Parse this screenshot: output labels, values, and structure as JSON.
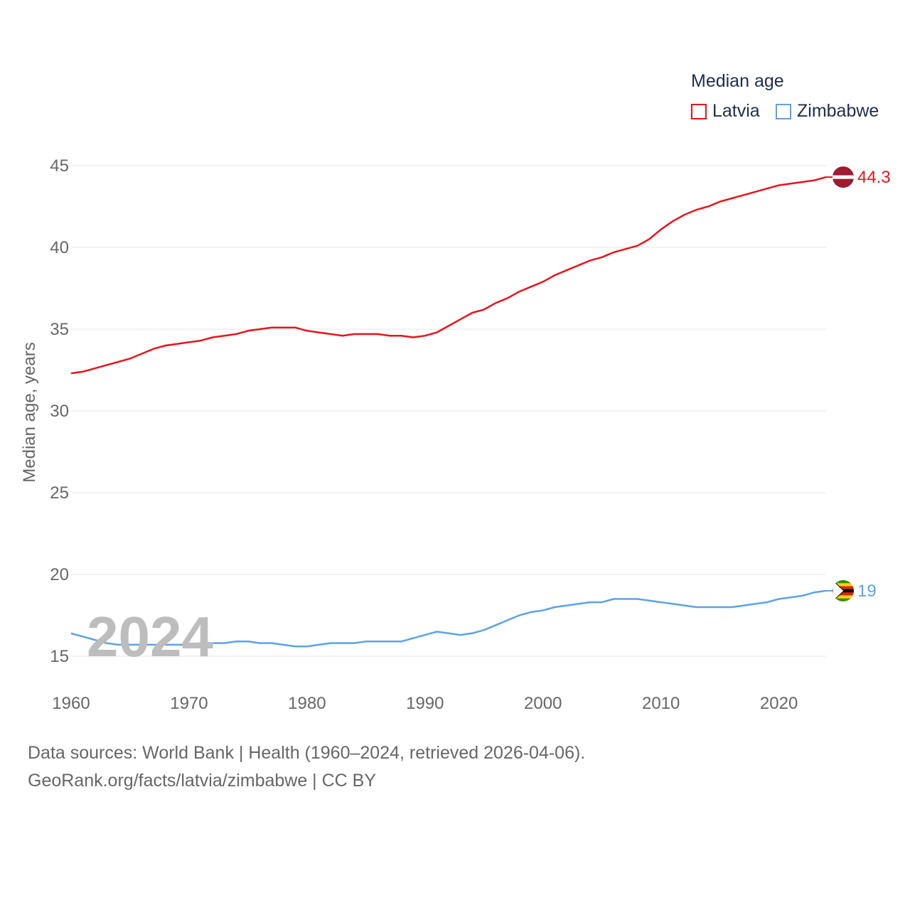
{
  "legend": {
    "title": "Median age",
    "items": [
      {
        "label": "Latvia",
        "color": "#e8141b"
      },
      {
        "label": "Zimbabwe",
        "color": "#5ba3e6"
      }
    ]
  },
  "watermark_year": "2024",
  "footer": {
    "line1": "Data sources: World Bank | Health (1960–2024, retrieved 2026-04-06).",
    "line2": "GeoRank.org/facts/latvia/zimbabwe | CC BY"
  },
  "chart_data": {
    "type": "line",
    "title": "Median age",
    "xlabel": "",
    "ylabel": "Median age, years",
    "xlim": [
      1960,
      2024
    ],
    "ylim": [
      13,
      47
    ],
    "x_ticks": [
      1960,
      1970,
      1980,
      1990,
      2000,
      2010,
      2020
    ],
    "y_ticks": [
      15,
      20,
      25,
      30,
      35,
      40,
      45
    ],
    "grid": true,
    "x": [
      1960,
      1961,
      1962,
      1963,
      1964,
      1965,
      1966,
      1967,
      1968,
      1969,
      1970,
      1971,
      1972,
      1973,
      1974,
      1975,
      1976,
      1977,
      1978,
      1979,
      1980,
      1981,
      1982,
      1983,
      1984,
      1985,
      1986,
      1987,
      1988,
      1989,
      1990,
      1991,
      1992,
      1993,
      1994,
      1995,
      1996,
      1997,
      1998,
      1999,
      2000,
      2001,
      2002,
      2003,
      2004,
      2005,
      2006,
      2007,
      2008,
      2009,
      2010,
      2011,
      2012,
      2013,
      2014,
      2015,
      2016,
      2017,
      2018,
      2019,
      2020,
      2021,
      2022,
      2023,
      2024
    ],
    "series": [
      {
        "name": "Latvia",
        "color": "#e8141b",
        "end_label": "44.3",
        "values": [
          32.3,
          32.4,
          32.6,
          32.8,
          33.0,
          33.2,
          33.5,
          33.8,
          34.0,
          34.1,
          34.2,
          34.3,
          34.5,
          34.6,
          34.7,
          34.9,
          35.0,
          35.1,
          35.1,
          35.1,
          34.9,
          34.8,
          34.7,
          34.6,
          34.7,
          34.7,
          34.7,
          34.6,
          34.6,
          34.5,
          34.6,
          34.8,
          35.2,
          35.6,
          36.0,
          36.2,
          36.6,
          36.9,
          37.3,
          37.6,
          37.9,
          38.3,
          38.6,
          38.9,
          39.2,
          39.4,
          39.7,
          39.9,
          40.1,
          40.5,
          41.1,
          41.6,
          42.0,
          42.3,
          42.5,
          42.8,
          43.0,
          43.2,
          43.4,
          43.6,
          43.8,
          43.9,
          44.0,
          44.1,
          44.3
        ]
      },
      {
        "name": "Zimbabwe",
        "color": "#5ba3e6",
        "end_label": "19",
        "values": [
          16.4,
          16.2,
          16.0,
          15.8,
          15.7,
          15.7,
          15.7,
          15.7,
          15.7,
          15.7,
          15.7,
          15.8,
          15.8,
          15.8,
          15.9,
          15.9,
          15.8,
          15.8,
          15.7,
          15.6,
          15.6,
          15.7,
          15.8,
          15.8,
          15.8,
          15.9,
          15.9,
          15.9,
          15.9,
          16.1,
          16.3,
          16.5,
          16.4,
          16.3,
          16.4,
          16.6,
          16.9,
          17.2,
          17.5,
          17.7,
          17.8,
          18.0,
          18.1,
          18.2,
          18.3,
          18.3,
          18.5,
          18.5,
          18.5,
          18.4,
          18.3,
          18.2,
          18.1,
          18.0,
          18.0,
          18.0,
          18.0,
          18.1,
          18.2,
          18.3,
          18.5,
          18.6,
          18.7,
          18.9,
          19.0
        ]
      }
    ]
  }
}
